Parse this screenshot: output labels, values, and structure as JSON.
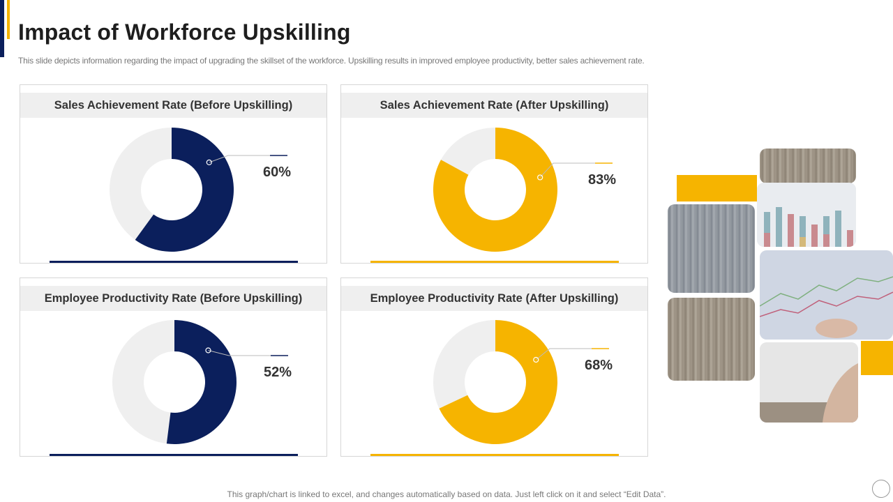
{
  "header": {
    "title": "Impact of Workforce Upskilling",
    "subtitle": "This slide depicts information regarding the impact of upgrading the skillset of the workforce. Upskilling results in improved employee productivity, better sales achievement rate."
  },
  "colors": {
    "navy": "#0b1f5c",
    "gold": "#f6b400",
    "track": "#efefef"
  },
  "chart_data": [
    {
      "type": "pie",
      "title": "Sales Achievement Rate (Before Upskilling)",
      "value": 60,
      "label": "60%",
      "color": "#0b1f5c"
    },
    {
      "type": "pie",
      "title": "Sales Achievement Rate (After Upskilling)",
      "value": 83,
      "label": "83%",
      "color": "#f6b400"
    },
    {
      "type": "pie",
      "title": "Employee Productivity Rate (Before Upskilling)",
      "value": 52,
      "label": "52%",
      "color": "#0b1f5c"
    },
    {
      "type": "pie",
      "title": "Employee Productivity Rate (After Upskilling)",
      "value": 68,
      "label": "68%",
      "color": "#f6b400"
    }
  ],
  "footer": {
    "note": "This graph/chart is linked to excel,  and changes automatically based on data. Just left click on it and select “Edit Data”."
  }
}
